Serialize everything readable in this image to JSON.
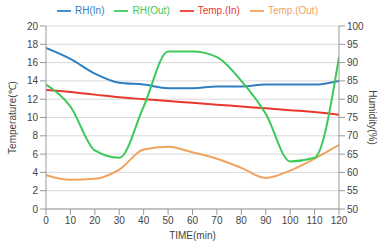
{
  "chart_data": {
    "type": "line",
    "x_label": "TIME(min)",
    "y_label": "Temperature(℃)",
    "y2_label": "Humidity(%)",
    "x": [
      0,
      10,
      20,
      30,
      40,
      50,
      60,
      70,
      80,
      90,
      100,
      110,
      120
    ],
    "xlim": [
      0,
      120
    ],
    "xticks": [
      0,
      10,
      20,
      30,
      40,
      50,
      60,
      70,
      80,
      90,
      100,
      110,
      120
    ],
    "ylim": [
      0,
      20
    ],
    "yticks": [
      0,
      2,
      4,
      6,
      8,
      10,
      12,
      14,
      16,
      18,
      20
    ],
    "y2lim": [
      50,
      100
    ],
    "y2ticks": [
      50,
      55,
      60,
      65,
      70,
      75,
      80,
      85,
      90,
      95,
      100
    ],
    "grid": true,
    "legend": "top",
    "series": [
      {
        "name": "Temp.(In)",
        "color": "#e8382c",
        "values": [
          13.0,
          12.8,
          12.5,
          12.2,
          12.0,
          11.8,
          11.6,
          11.4,
          11.2,
          11.0,
          10.8,
          10.6,
          10.3
        ]
      },
      {
        "name": "Temp.(Out)",
        "color": "#f0a35e",
        "values": [
          3.7,
          3.2,
          3.3,
          4.3,
          6.5,
          6.8,
          6.2,
          5.5,
          4.5,
          3.4,
          4.2,
          5.5,
          7.0
        ]
      },
      {
        "name": "RH(In)",
        "color": "#2f7fc1",
        "axis": "y2",
        "values": [
          94,
          91,
          87,
          84.5,
          84,
          83,
          83,
          83.5,
          83.5,
          84,
          84,
          84,
          85
        ]
      },
      {
        "name": "RH(Out)",
        "color": "#3cc85a",
        "axis": "y2",
        "values": [
          84,
          78,
          66,
          64,
          78,
          93,
          93,
          91.5,
          85,
          76,
          63,
          64,
          91.5
        ]
      }
    ]
  }
}
